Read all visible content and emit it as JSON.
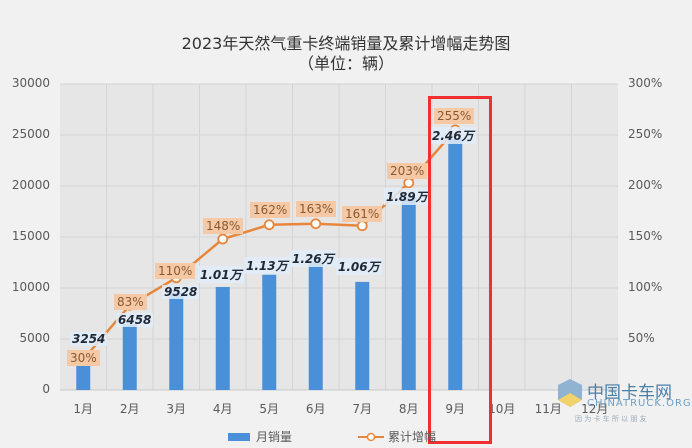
{
  "chart_data": {
    "type": "bar+line",
    "title": "2023年天然气重卡终端销量及累计增幅走势图",
    "subtitle": "（单位：辆）",
    "categories": [
      "1月",
      "2月",
      "3月",
      "4月",
      "5月",
      "6月",
      "7月",
      "8月",
      "9月",
      "10月",
      "11月",
      "12月"
    ],
    "series": [
      {
        "name": "月销量",
        "type": "bar",
        "axis": "left",
        "color": "#4a90d9",
        "values": [
          3254,
          6458,
          9528,
          10100,
          11300,
          12600,
          10600,
          18900,
          24600,
          null,
          null,
          null
        ],
        "labels": [
          "3254",
          "6458",
          "9528",
          "1.01万",
          "1.13万",
          "1.26万",
          "1.06万",
          "1.89万",
          "2.46万",
          "",
          "",
          ""
        ]
      },
      {
        "name": "累计增幅",
        "type": "line",
        "axis": "right",
        "color": "#e8873c",
        "values": [
          30,
          83,
          110,
          148,
          162,
          163,
          161,
          203,
          255,
          null,
          null,
          null
        ],
        "labels": [
          "30%",
          "83%",
          "110%",
          "148%",
          "162%",
          "163%",
          "161%",
          "203%",
          "255%",
          "",
          "",
          ""
        ]
      }
    ],
    "ylim_left": [
      0,
      30000
    ],
    "yticks_left": [
      "0",
      "5000",
      "10000",
      "15000",
      "20000",
      "25000",
      "30000"
    ],
    "ylim_right": [
      0,
      300
    ],
    "yticks_right": [
      "50%",
      "100%",
      "150%",
      "200%",
      "250%",
      "300%"
    ],
    "grid": true,
    "legend_position": "bottom",
    "highlight": {
      "category": "9月",
      "color": "#f03030"
    }
  },
  "header": {
    "title": "2023年天然气重卡终端销量及累计增幅走势图",
    "subtitle": "（单位：辆）"
  },
  "legend": {
    "bar_label": "月销量",
    "line_label": "累计增幅"
  },
  "watermark": {
    "cn": "中国卡车网",
    "en": "CHINATRUCK.ORG",
    "slogan": "因 为 卡 车 所 以 朋 友"
  }
}
